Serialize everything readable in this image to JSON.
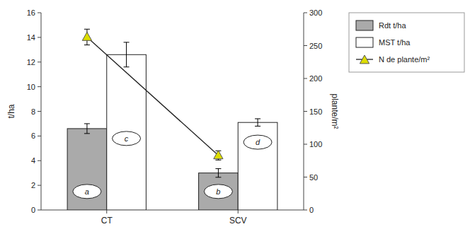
{
  "chart_data": {
    "type": "bar",
    "categories": [
      "CT",
      "SCV"
    ],
    "series": [
      {
        "name": "Rdt t/ha",
        "color": "#aaaaaa",
        "values": [
          6.6,
          3.0
        ],
        "errors": [
          0.4,
          0.35
        ]
      },
      {
        "name": "MST t/ha",
        "color": "#ffffff",
        "values": [
          12.6,
          7.1
        ],
        "errors": [
          1.0,
          0.3
        ]
      },
      {
        "name": "N de plante/m²",
        "type": "line",
        "axis": "y2",
        "color": "#dddd00",
        "marker": "triangle",
        "values": [
          263,
          83
        ],
        "errors": [
          12,
          7
        ]
      }
    ],
    "ylabel": "t/ha",
    "y2label": "plante/m²",
    "ylim": [
      0,
      16
    ],
    "yticks": [
      0,
      2,
      4,
      6,
      8,
      10,
      12,
      14,
      16
    ],
    "y2lim": [
      0,
      300
    ],
    "y2ticks": [
      0,
      50,
      100,
      150,
      200,
      250,
      300
    ],
    "annotations": [
      {
        "text": "a",
        "category": "CT",
        "series": "Rdt t/ha",
        "y": 1.5
      },
      {
        "text": "b",
        "category": "SCV",
        "series": "Rdt t/ha",
        "y": 1.5
      },
      {
        "text": "c",
        "category": "CT",
        "series": "MST t/ha",
        "y": 5.8
      },
      {
        "text": "d",
        "category": "SCV",
        "series": "MST t/ha",
        "y": 5.5
      }
    ],
    "grid": false,
    "legend": "right"
  }
}
